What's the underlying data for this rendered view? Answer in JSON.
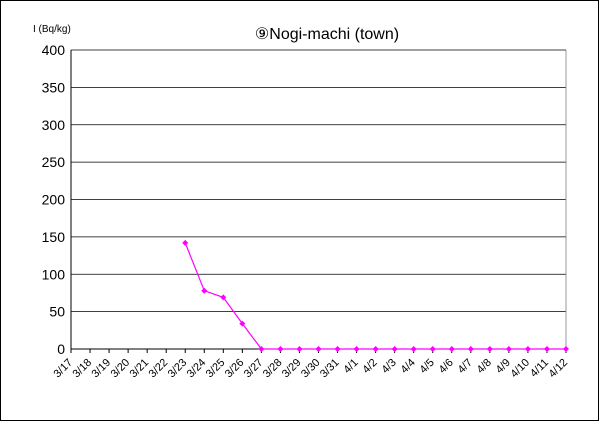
{
  "chart_data": {
    "type": "line",
    "title": "⑨Nogi-machi (town)",
    "ylabel": "I (Bq/kg)",
    "xlabel": "",
    "ylim": [
      0,
      400
    ],
    "yticks": [
      0,
      50,
      100,
      150,
      200,
      250,
      300,
      350,
      400
    ],
    "grid": true,
    "legend": "none",
    "categories": [
      "3/17",
      "3/18",
      "3/19",
      "3/20",
      "3/21",
      "3/22",
      "3/23",
      "3/24",
      "3/25",
      "3/26",
      "3/27",
      "3/28",
      "3/29",
      "3/30",
      "3/31",
      "4/1",
      "4/2",
      "4/3",
      "4/4",
      "4/5",
      "4/6",
      "4/7",
      "4/8",
      "4/9",
      "4/10",
      "4/11",
      "4/12"
    ],
    "series": [
      {
        "color": "#ff00ff",
        "values": [
          null,
          null,
          null,
          null,
          null,
          null,
          142,
          78,
          69,
          34,
          0,
          0,
          0,
          0,
          0,
          0,
          0,
          0,
          0,
          0,
          0,
          0,
          0,
          0,
          0,
          0,
          0
        ]
      }
    ]
  }
}
